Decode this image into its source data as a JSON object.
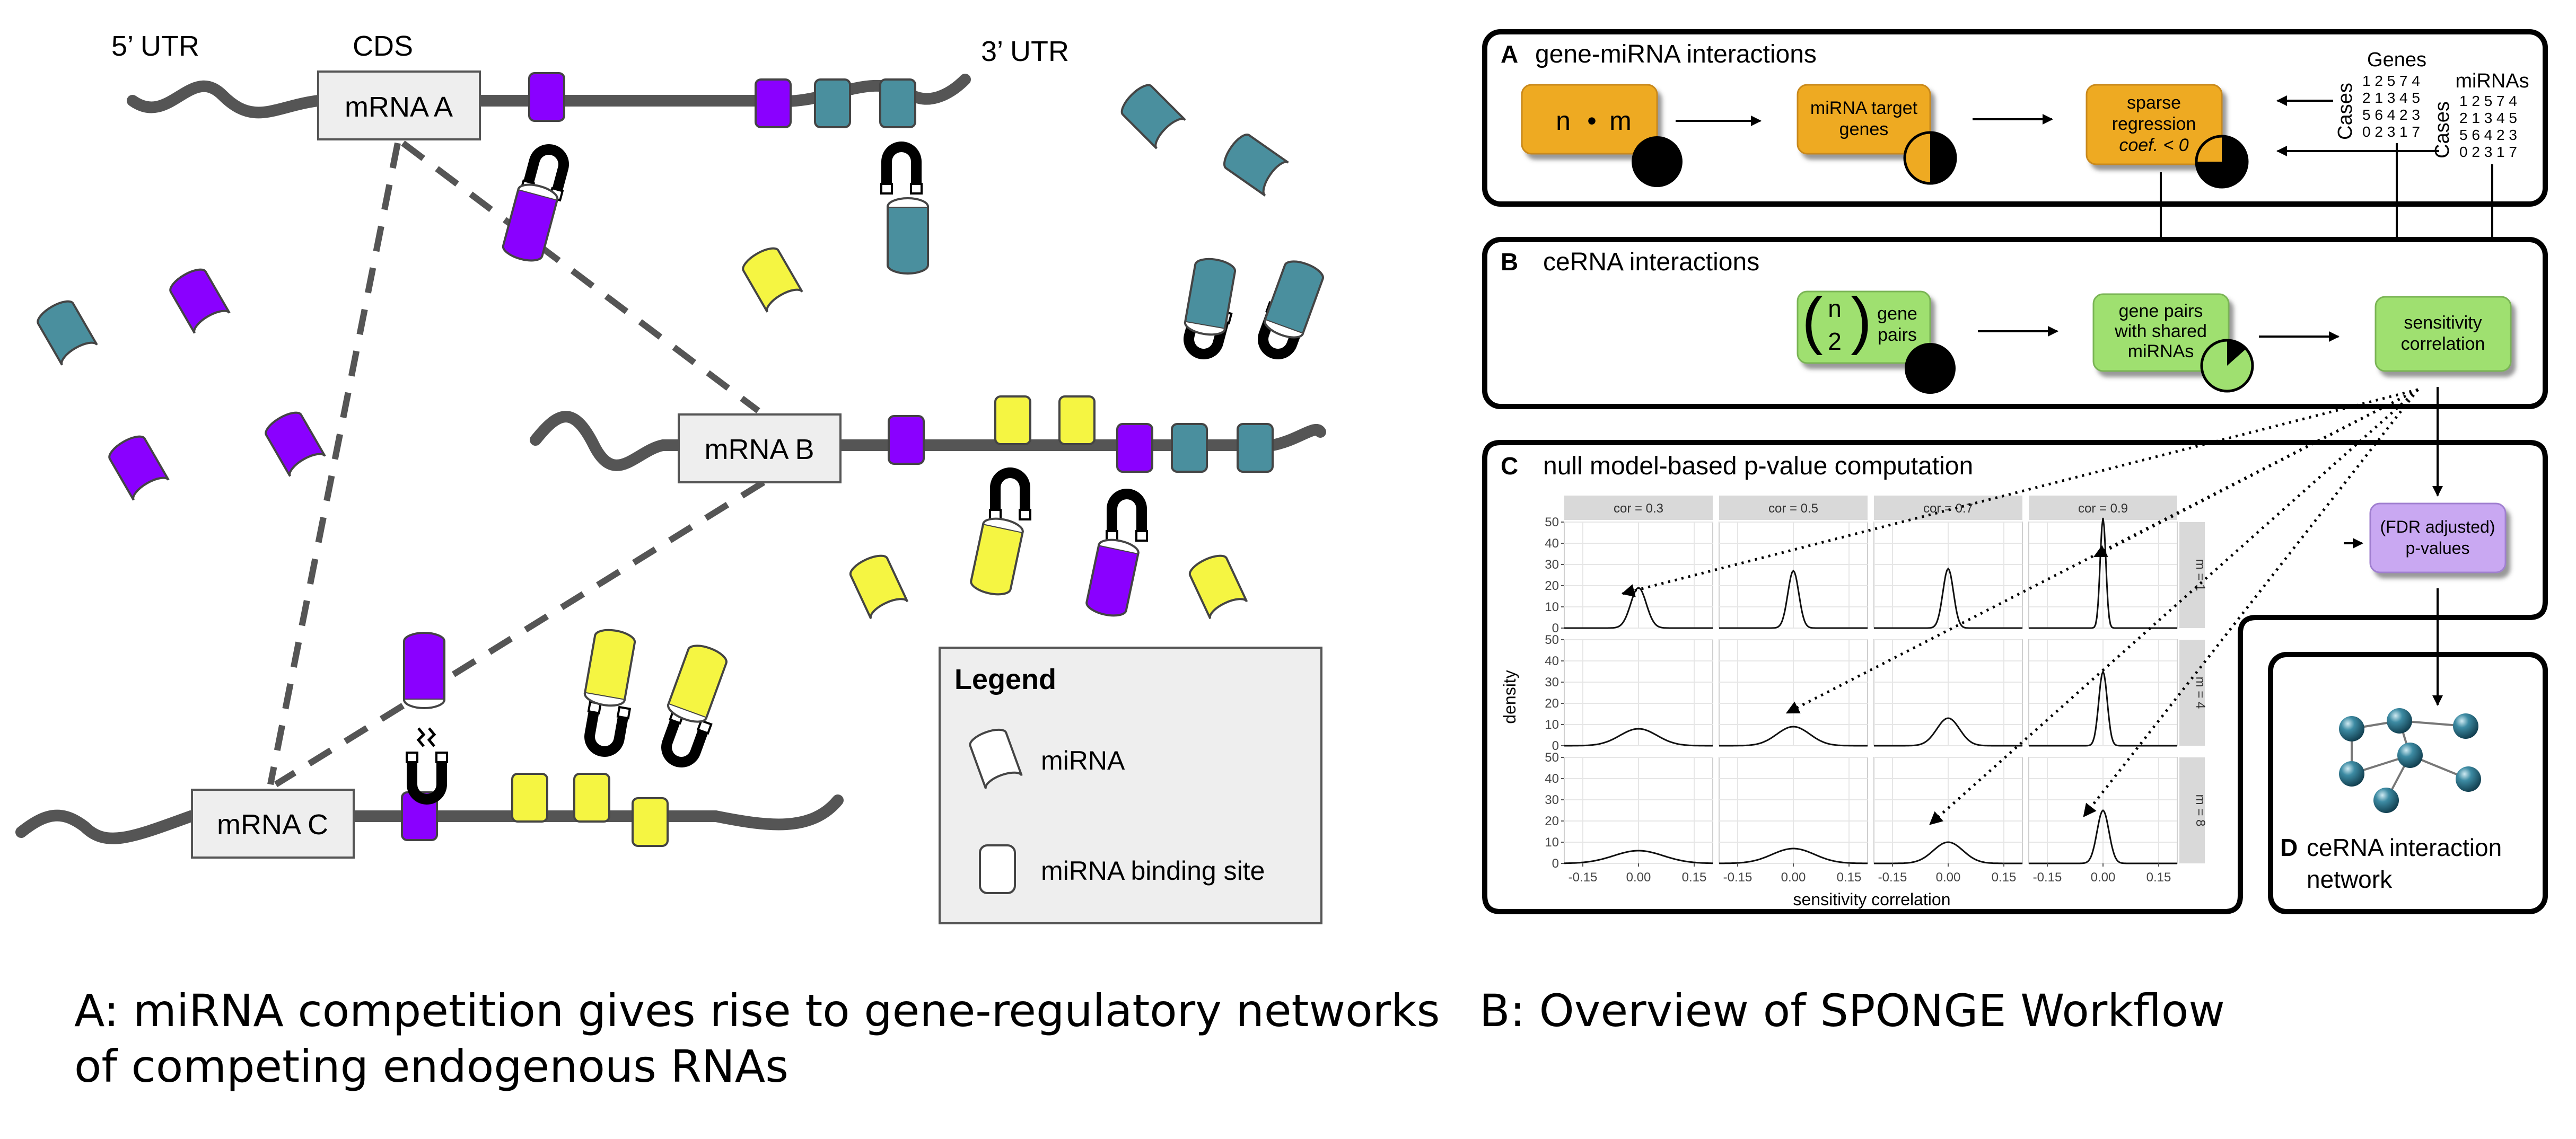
{
  "panel_a": {
    "utr5_label": "5’ UTR",
    "cds_label": "CDS",
    "utr3_label": "3’ UTR",
    "mrna_a": "mRNA A",
    "mrna_b": "mRNA B",
    "mrna_c": "mRNA C",
    "legend": {
      "title": "Legend",
      "mirna_label": "miRNA",
      "binding_site_label": "miRNA binding site"
    },
    "caption_line1": "A: miRNA competition gives rise to gene-regulatory networks",
    "caption_line2": "of competing endogenous RNAs"
  },
  "panel_b": {
    "caption": "B: Overview of SPONGE Workflow",
    "box_a": {
      "letter": "A",
      "title": "gene-miRNA interactions",
      "nm_n": "n",
      "nm_dot": "•",
      "nm_m": "m",
      "target_genes_line1": "miRNA target",
      "target_genes_line2": "genes",
      "sparse_line1": "sparse",
      "sparse_line2": "regression",
      "sparse_line3": "coef. < 0",
      "genes_label": "Genes",
      "mirnas_label": "miRNAs",
      "cases_label": "Cases",
      "genes_matrix": [
        "1 2 5 7 4",
        "2 1 3 4 5",
        "5 6 4 2 3",
        "0 2 3 1 7"
      ],
      "mirnas_matrix": [
        "1 2 5 7 4",
        "2 1 3 4 5",
        "5 6 4 2 3",
        "0 2 3 1 7"
      ]
    },
    "box_b": {
      "letter": "B",
      "title": "ceRNA interactions",
      "binom_n": "n",
      "binom_k": "2",
      "gene_pairs_line1": "gene",
      "gene_pairs_line2": "pairs",
      "shared_line1": "gene pairs",
      "shared_line2": "with shared",
      "shared_line3": "miRNAs",
      "sens_line1": "sensitivity",
      "sens_line2": "correlation"
    },
    "box_c": {
      "letter": "C",
      "title": "null model-based p-value computation",
      "fdr_line1": "(FDR adjusted)",
      "fdr_line2": "p-values"
    },
    "box_d": {
      "letter": "D",
      "title_line1": "ceRNA interaction",
      "title_line2": "network"
    },
    "colors": {
      "orange": "#eeaa22",
      "green": "#9fe070",
      "purple": "#c9a8f2",
      "mirna_purple": "#8a00ff",
      "mirna_teal": "#4a8f9e",
      "mirna_yellow": "#f5f542",
      "strand": "#555555",
      "node": "#2a6f86"
    }
  },
  "chart_data": {
    "type": "line",
    "description_free": true,
    "xlabel": "sensitivity correlation",
    "ylabel": "density",
    "column_labels": [
      "cor = 0.3",
      "cor = 0.5",
      "cor = 0.7",
      "cor = 0.9"
    ],
    "row_labels": [
      "m = 1",
      "m = 4",
      "m = 8"
    ],
    "xlim": [
      -0.2,
      0.2
    ],
    "ylim": [
      0,
      50
    ],
    "x_ticks": [
      "-0.15",
      "0.00",
      "0.15",
      "-0.15",
      "0.00",
      "0.15",
      "-0.15",
      "0.00",
      "0.15",
      "-0.15",
      "0.00",
      "0.15"
    ],
    "y_ticks": [
      "0",
      "10",
      "20",
      "30",
      "40",
      "50"
    ],
    "panels": [
      {
        "row": "m = 1",
        "col": "cor = 0.3",
        "center": 0.0,
        "peak": 19
      },
      {
        "row": "m = 1",
        "col": "cor = 0.5",
        "center": 0.0,
        "peak": 27
      },
      {
        "row": "m = 1",
        "col": "cor = 0.7",
        "center": 0.0,
        "peak": 28
      },
      {
        "row": "m = 1",
        "col": "cor = 0.9",
        "center": 0.0,
        "peak": 52
      },
      {
        "row": "m = 4",
        "col": "cor = 0.3",
        "center": 0.0,
        "peak": 8
      },
      {
        "row": "m = 4",
        "col": "cor = 0.5",
        "center": 0.0,
        "peak": 9
      },
      {
        "row": "m = 4",
        "col": "cor = 0.7",
        "center": 0.0,
        "peak": 13
      },
      {
        "row": "m = 4",
        "col": "cor = 0.9",
        "center": 0.0,
        "peak": 35
      },
      {
        "row": "m = 8",
        "col": "cor = 0.3",
        "center": 0.0,
        "peak": 6
      },
      {
        "row": "m = 8",
        "col": "cor = 0.5",
        "center": 0.0,
        "peak": 7
      },
      {
        "row": "m = 8",
        "col": "cor = 0.7",
        "center": 0.0,
        "peak": 10
      },
      {
        "row": "m = 8",
        "col": "cor = 0.9",
        "center": 0.0,
        "peak": 25
      }
    ]
  }
}
